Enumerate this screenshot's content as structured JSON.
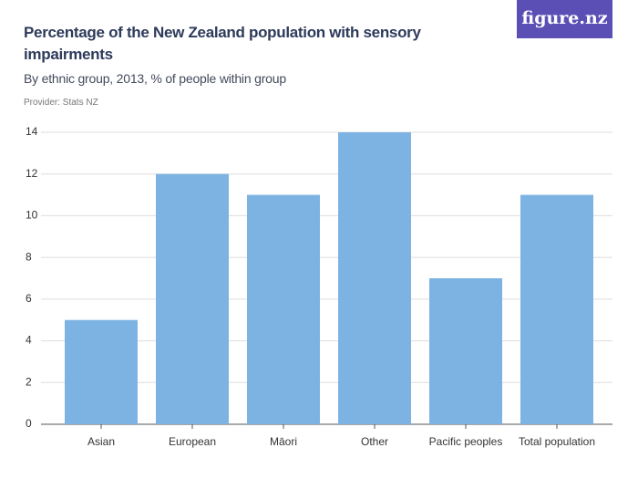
{
  "logo": "figure.nz",
  "chart_data": {
    "type": "bar",
    "title": "Percentage of the New Zealand population with sensory impairments",
    "subtitle": "By ethnic group, 2013, % of people within group",
    "provider": "Provider: Stats NZ",
    "categories": [
      "Asian",
      "European",
      "Māori",
      "Other",
      "Pacific peoples",
      "Total population"
    ],
    "values": [
      5,
      12,
      11,
      14,
      7,
      11
    ],
    "color": "#7db3e3",
    "ylim": [
      0,
      14
    ],
    "yticks": [
      0,
      2,
      4,
      6,
      8,
      10,
      12,
      14
    ],
    "grid": true
  }
}
